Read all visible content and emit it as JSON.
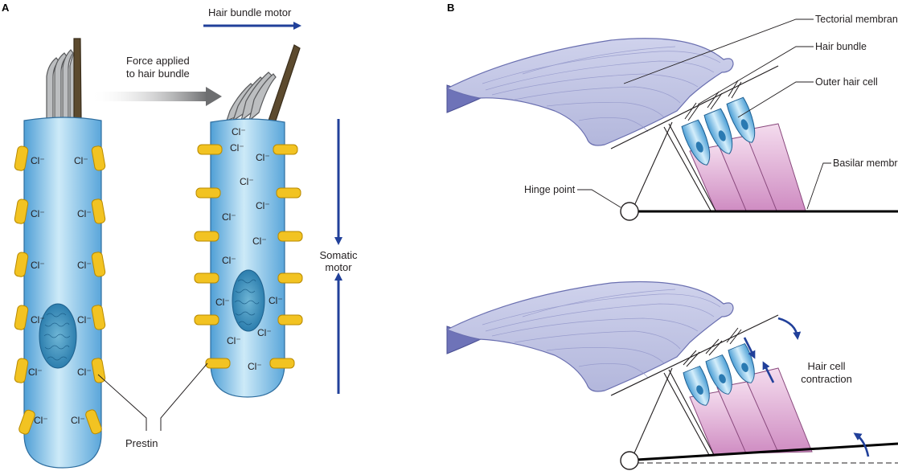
{
  "panel_a": {
    "letter": "A",
    "hair_bundle_motor": "Hair bundle motor",
    "force_line1": "Force applied",
    "force_line2": "to hair bundle",
    "somatic_line1": "Somatic",
    "somatic_line2": "motor",
    "prestin": "Prestin",
    "ion": "Cl⁻"
  },
  "panel_b": {
    "letter": "B",
    "tectorial_membrane": "Tectorial membrane",
    "hair_bundle": "Hair bundle",
    "outer_hair_cell": "Outer hair cell",
    "basilar_membrane": "Basilar membrane",
    "hinge_point": "Hinge point",
    "contraction_line1": "Hair cell",
    "contraction_line2": "contraction"
  },
  "colors": {
    "cell_blue": "#8ec9ec",
    "prestin_yellow": "#f2c322",
    "arrow_blue": "#21409a",
    "membrane_lavender": "#c7cbe8",
    "support_pink": "#e3b3d6"
  }
}
